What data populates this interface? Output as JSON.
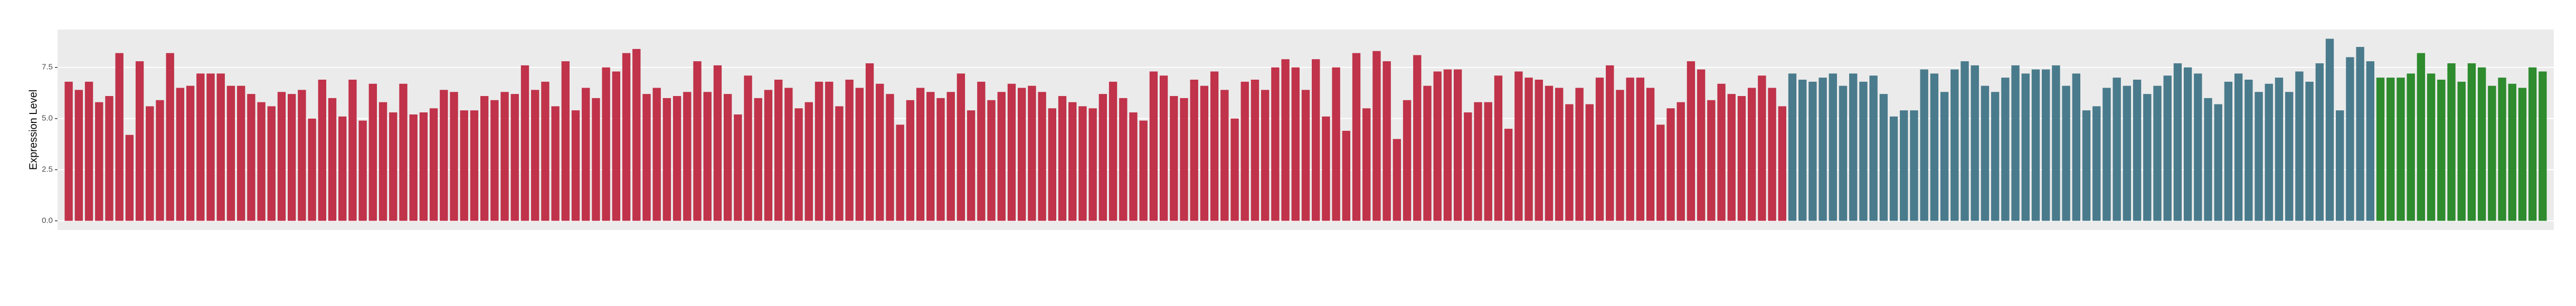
{
  "chart_data": {
    "type": "bar",
    "y_label": "Expression Level",
    "ylim": [
      -0.45,
      9.35
    ],
    "yticks": [
      {
        "value": 0,
        "label": "0.0"
      },
      {
        "value": 2.5,
        "label": "2.5"
      },
      {
        "value": 5,
        "label": "5.0"
      },
      {
        "value": 7.5,
        "label": "7.5"
      }
    ],
    "grid": true,
    "values": [
      6.8,
      6.4,
      6.8,
      5.8,
      6.1,
      8.2,
      4.2,
      7.8,
      5.6,
      5.9,
      8.2,
      6.5,
      6.6,
      7.2,
      7.2,
      7.2,
      6.6,
      6.6,
      6.2,
      5.8,
      5.6,
      6.3,
      6.2,
      6.4,
      5.0,
      6.9,
      6.0,
      5.1,
      6.9,
      4.9,
      6.7,
      5.8,
      5.3,
      6.7,
      5.2,
      5.3,
      5.5,
      6.4,
      6.3,
      5.4,
      5.4,
      6.1,
      5.9,
      6.3,
      6.2,
      7.6,
      6.4,
      6.8,
      5.6,
      7.8,
      5.4,
      6.5,
      6.0,
      7.5,
      7.3,
      8.2,
      8.4,
      6.2,
      6.5,
      6.0,
      6.1,
      6.3,
      7.8,
      6.3,
      7.6,
      6.2,
      5.2,
      7.1,
      6.0,
      6.4,
      6.9,
      6.5,
      5.5,
      5.8,
      6.8,
      6.8,
      5.6,
      6.9,
      6.5,
      7.7,
      6.7,
      6.2,
      4.7,
      5.9,
      6.5,
      6.3,
      6.0,
      6.3,
      7.2,
      5.4,
      6.8,
      5.9,
      6.3,
      6.7,
      6.5,
      6.6,
      6.3,
      5.5,
      6.1,
      5.8,
      5.6,
      5.5,
      6.2,
      6.8,
      6.0,
      5.3,
      4.9,
      7.3,
      7.1,
      6.1,
      6.0,
      6.9,
      6.6,
      7.3,
      6.4,
      5.0,
      6.8,
      6.9,
      6.4,
      7.5,
      7.9,
      7.5,
      6.4,
      7.9,
      5.1,
      7.5,
      4.4,
      8.2,
      5.5,
      8.3,
      7.8,
      4.0,
      5.9,
      8.1,
      6.6,
      7.3,
      7.4,
      7.4,
      5.3,
      5.8,
      5.8,
      7.1,
      4.5,
      7.3,
      7.0,
      6.9,
      6.6,
      6.5,
      5.7,
      6.5,
      5.7,
      7.0,
      7.6,
      6.4,
      7.0,
      7.0,
      6.5,
      4.7,
      5.5,
      5.8,
      7.8,
      7.4,
      5.9,
      6.7,
      6.2,
      6.1,
      6.5,
      7.1,
      6.5,
      5.6,
      7.2,
      6.9,
      6.8,
      7.0,
      7.2,
      6.6,
      7.2,
      6.8,
      7.1,
      6.2,
      5.1,
      5.4,
      5.4,
      7.4,
      7.2,
      6.3,
      7.4,
      7.8,
      7.6,
      6.6,
      6.3,
      7.0,
      7.6,
      7.2,
      7.4,
      7.4,
      7.6,
      6.6,
      7.2,
      5.4,
      5.6,
      6.5,
      7.0,
      6.6,
      6.9,
      6.2,
      6.6,
      7.1,
      7.7,
      7.5,
      7.2,
      6.0,
      5.7,
      6.8,
      7.2,
      6.9,
      6.3,
      6.7,
      7.0,
      6.3,
      7.3,
      6.8,
      7.7,
      8.9,
      5.4,
      8.0,
      8.5,
      7.8,
      7.0,
      7.0,
      7.0,
      7.2,
      8.2,
      7.2,
      6.9,
      7.7,
      6.8,
      7.7,
      7.5,
      6.6,
      7.0,
      6.7,
      6.5,
      7.5,
      7.3
    ],
    "colors": [
      "#c0334a",
      "#c0334a",
      "#c0334a",
      "#c0334a",
      "#c0334a",
      "#c0334a",
      "#c0334a",
      "#c0334a",
      "#c0334a",
      "#c0334a",
      "#c0334a",
      "#c0334a",
      "#c0334a",
      "#c0334a",
      "#c0334a",
      "#c0334a",
      "#c0334a",
      "#c0334a",
      "#c0334a",
      "#c0334a",
      "#c0334a",
      "#c0334a",
      "#c0334a",
      "#c0334a",
      "#c0334a",
      "#c0334a",
      "#c0334a",
      "#c0334a",
      "#c0334a",
      "#c0334a",
      "#c0334a",
      "#c0334a",
      "#c0334a",
      "#c0334a",
      "#c0334a",
      "#c0334a",
      "#c0334a",
      "#c0334a",
      "#c0334a",
      "#c0334a",
      "#c0334a",
      "#c0334a",
      "#c0334a",
      "#c0334a",
      "#c0334a",
      "#c0334a",
      "#c0334a",
      "#c0334a",
      "#c0334a",
      "#c0334a",
      "#c0334a",
      "#c0334a",
      "#c0334a",
      "#c0334a",
      "#c0334a",
      "#c0334a",
      "#c0334a",
      "#c0334a",
      "#c0334a",
      "#c0334a",
      "#c0334a",
      "#c0334a",
      "#c0334a",
      "#c0334a",
      "#c0334a",
      "#c0334a",
      "#c0334a",
      "#c0334a",
      "#c0334a",
      "#c0334a",
      "#c0334a",
      "#c0334a",
      "#c0334a",
      "#c0334a",
      "#c0334a",
      "#c0334a",
      "#c0334a",
      "#c0334a",
      "#c0334a",
      "#c0334a",
      "#c0334a",
      "#c0334a",
      "#c0334a",
      "#c0334a",
      "#c0334a",
      "#c0334a",
      "#c0334a",
      "#c0334a",
      "#c0334a",
      "#c0334a",
      "#c0334a",
      "#c0334a",
      "#c0334a",
      "#c0334a",
      "#c0334a",
      "#c0334a",
      "#c0334a",
      "#c0334a",
      "#c0334a",
      "#c0334a",
      "#c0334a",
      "#c0334a",
      "#c0334a",
      "#c0334a",
      "#c0334a",
      "#c0334a",
      "#c0334a",
      "#c0334a",
      "#c0334a",
      "#c0334a",
      "#c0334a",
      "#c0334a",
      "#c0334a",
      "#c0334a",
      "#c0334a",
      "#c0334a",
      "#c0334a",
      "#c0334a",
      "#c0334a",
      "#c0334a",
      "#c0334a",
      "#c0334a",
      "#c0334a",
      "#c0334a",
      "#c0334a",
      "#c0334a",
      "#c0334a",
      "#c0334a",
      "#c0334a",
      "#c0334a",
      "#c0334a",
      "#c0334a",
      "#c0334a",
      "#c0334a",
      "#c0334a",
      "#c0334a",
      "#c0334a",
      "#c0334a",
      "#c0334a",
      "#c0334a",
      "#c0334a",
      "#c0334a",
      "#c0334a",
      "#c0334a",
      "#c0334a",
      "#c0334a",
      "#c0334a",
      "#c0334a",
      "#c0334a",
      "#c0334a",
      "#c0334a",
      "#c0334a",
      "#c0334a",
      "#c0334a",
      "#c0334a",
      "#c0334a",
      "#c0334a",
      "#c0334a",
      "#c0334a",
      "#c0334a",
      "#c0334a",
      "#c0334a",
      "#c0334a",
      "#c0334a",
      "#c0334a",
      "#c0334a",
      "#c0334a",
      "#c0334a",
      "#c0334a",
      "#c0334a",
      "#4a7b8c",
      "#4a7b8c",
      "#4a7b8c",
      "#4a7b8c",
      "#4a7b8c",
      "#4a7b8c",
      "#4a7b8c",
      "#4a7b8c",
      "#4a7b8c",
      "#4a7b8c",
      "#4a7b8c",
      "#4a7b8c",
      "#4a7b8c",
      "#4a7b8c",
      "#4a7b8c",
      "#4a7b8c",
      "#4a7b8c",
      "#4a7b8c",
      "#4a7b8c",
      "#4a7b8c",
      "#4a7b8c",
      "#4a7b8c",
      "#4a7b8c",
      "#4a7b8c",
      "#4a7b8c",
      "#4a7b8c",
      "#4a7b8c",
      "#4a7b8c",
      "#4a7b8c",
      "#4a7b8c",
      "#4a7b8c",
      "#4a7b8c",
      "#4a7b8c",
      "#4a7b8c",
      "#4a7b8c",
      "#4a7b8c",
      "#4a7b8c",
      "#4a7b8c",
      "#4a7b8c",
      "#4a7b8c",
      "#4a7b8c",
      "#4a7b8c",
      "#4a7b8c",
      "#4a7b8c",
      "#4a7b8c",
      "#4a7b8c",
      "#4a7b8c",
      "#4a7b8c",
      "#4a7b8c",
      "#4a7b8c",
      "#4a7b8c",
      "#4a7b8c",
      "#4a7b8c",
      "#4a7b8c",
      "#4a7b8c",
      "#4a7b8c",
      "#4a7b8c",
      "#4a7b8c",
      "#2e8b2e",
      "#2e8b2e",
      "#2e8b2e",
      "#2e8b2e",
      "#2e8b2e",
      "#2e8b2e",
      "#2e8b2e",
      "#2e8b2e",
      "#2e8b2e",
      "#2e8b2e",
      "#2e8b2e",
      "#2e8b2e",
      "#2e8b2e",
      "#2e8b2e",
      "#2e8b2e",
      "#2e8b2e",
      "#2e8b2e"
    ]
  }
}
